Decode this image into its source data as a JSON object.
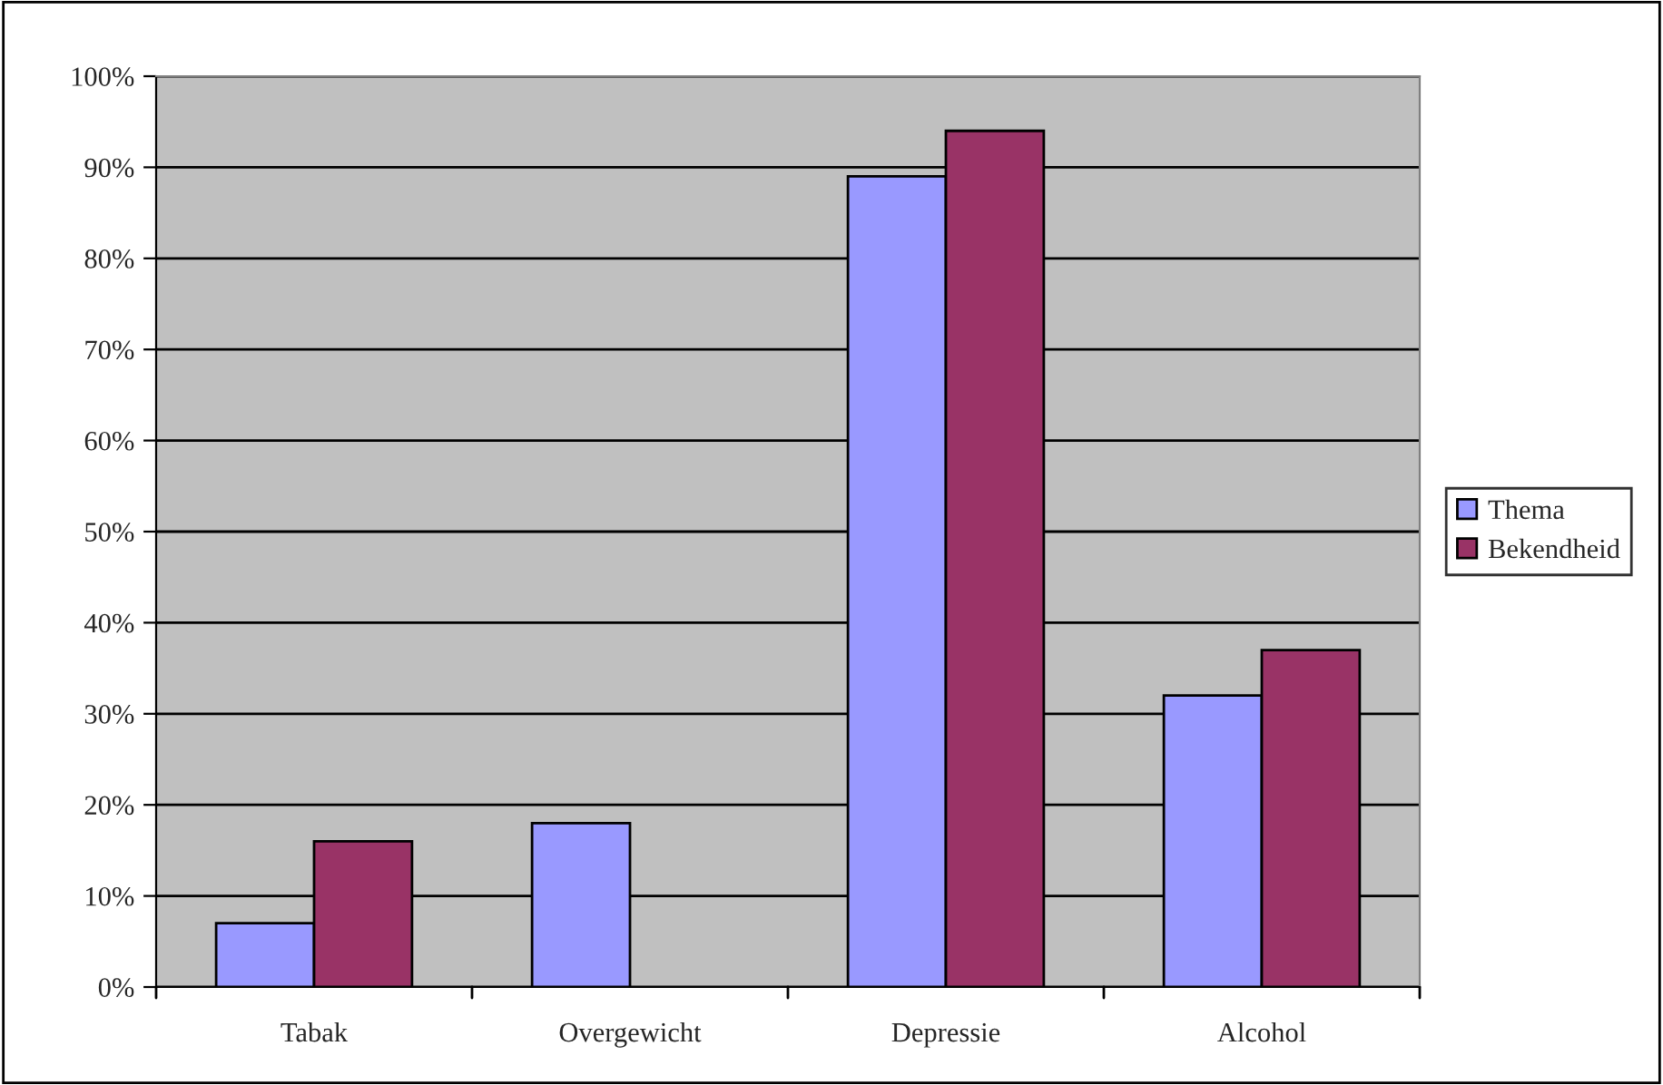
{
  "chart_data": {
    "type": "bar",
    "categories": [
      "Tabak",
      "Overgewicht",
      "Depressie",
      "Alcohol"
    ],
    "series": [
      {
        "name": "Thema",
        "color": "#9999ff",
        "values": [
          7,
          18,
          89,
          32
        ]
      },
      {
        "name": "Bekendheid",
        "color": "#993366",
        "values": [
          16,
          null,
          94,
          37
        ]
      }
    ],
    "ylim": [
      0,
      100
    ],
    "yticks": [
      {
        "value": 0,
        "label": "0%"
      },
      {
        "value": 10,
        "label": "10%"
      },
      {
        "value": 20,
        "label": "20%"
      },
      {
        "value": 30,
        "label": "30%"
      },
      {
        "value": 40,
        "label": "40%"
      },
      {
        "value": 50,
        "label": "50%"
      },
      {
        "value": 60,
        "label": "60%"
      },
      {
        "value": 70,
        "label": "70%"
      },
      {
        "value": 80,
        "label": "80%"
      },
      {
        "value": 90,
        "label": "90%"
      },
      {
        "value": 100,
        "label": "100%"
      }
    ],
    "grid": "y",
    "legend": "right"
  }
}
